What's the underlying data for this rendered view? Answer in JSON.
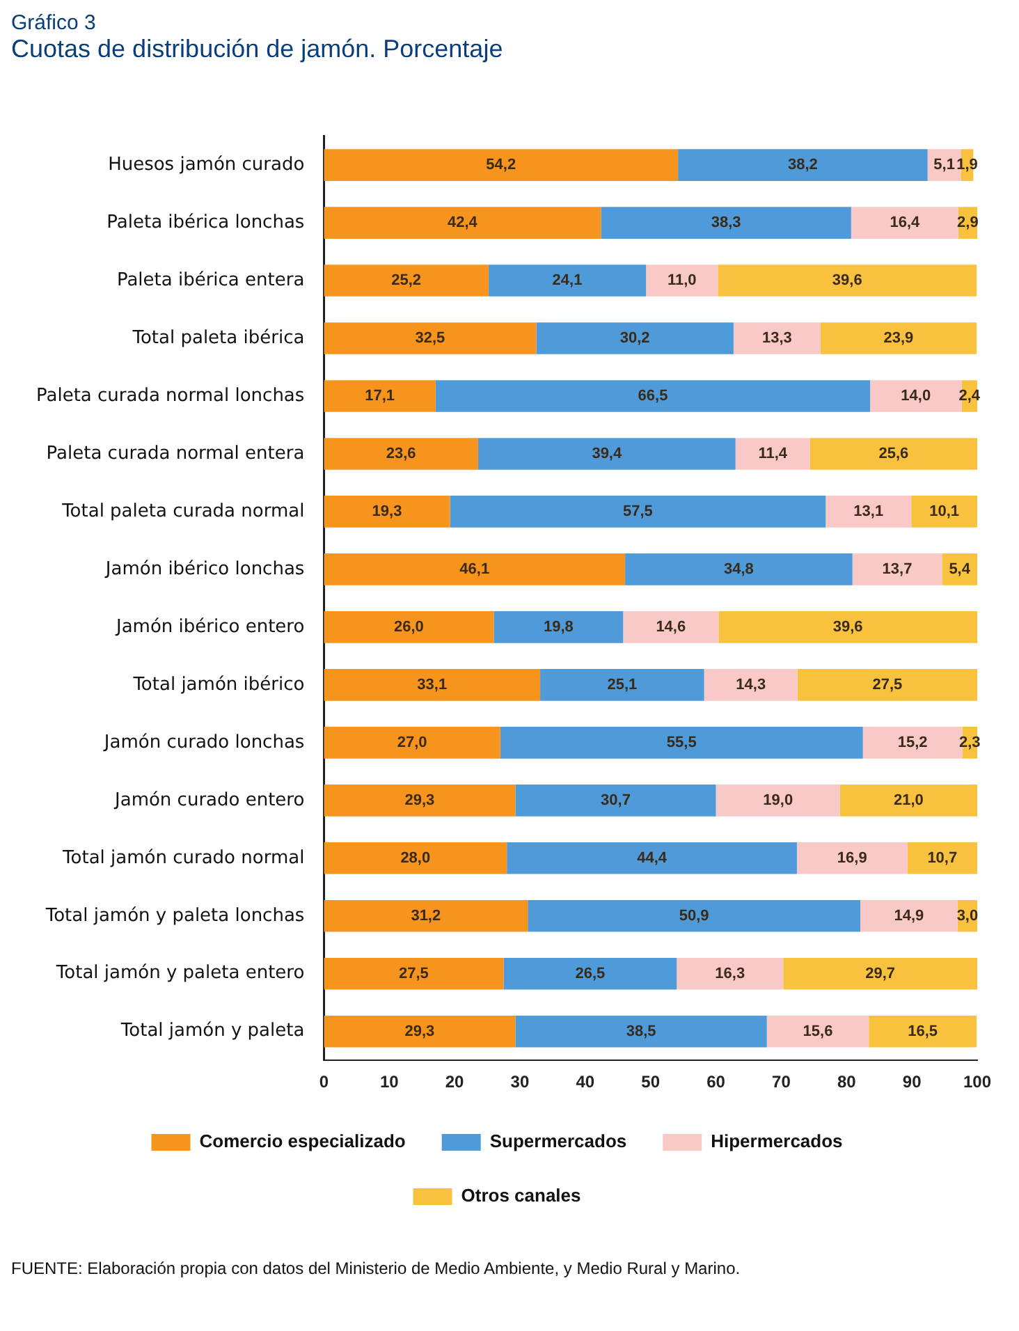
{
  "chart_data": {
    "type": "bar",
    "orientation": "horizontal",
    "stacked": true,
    "title": "Gráfico 3",
    "subtitle": "Cuotas de distribución de jamón. Porcentaje",
    "categories": [
      "Huesos jamón curado",
      "Paleta ibérica lonchas",
      "Paleta ibérica entera",
      "Total paleta ibérica",
      "Paleta curada normal lonchas",
      "Paleta curada normal entera",
      "Total paleta curada normal",
      "Jamón ibérico lonchas",
      "Jamón ibérico entero",
      "Total jamón ibérico",
      "Jamón curado lonchas",
      "Jamón curado entero",
      "Total jamón curado normal",
      "Total jamón y paleta lonchas",
      "Total jamón y paleta entero",
      "Total jamón y paleta"
    ],
    "series": [
      {
        "name": "Comercio especializado",
        "color": "#f7941d",
        "values": [
          54.2,
          42.4,
          25.2,
          32.5,
          17.1,
          23.6,
          19.3,
          46.1,
          26.0,
          33.1,
          27.0,
          29.3,
          28.0,
          31.2,
          27.5,
          29.3
        ],
        "value_labels": [
          "54,2",
          "42,4",
          "25,2",
          "32,5",
          "17,1",
          "23,6",
          "19,3",
          "46,1",
          "26,0",
          "33,1",
          "27,0",
          "29,3",
          "28,0",
          "31,2",
          "27,5",
          "29,3"
        ]
      },
      {
        "name": "Supermercados",
        "color": "#4f9bd9",
        "values": [
          38.2,
          38.3,
          24.1,
          30.2,
          66.5,
          39.4,
          57.5,
          34.8,
          19.8,
          25.1,
          55.5,
          30.7,
          44.4,
          50.9,
          26.5,
          38.5
        ],
        "value_labels": [
          "38,2",
          "38,3",
          "24,1",
          "30,2",
          "66,5",
          "39,4",
          "57,5",
          "34,8",
          "19,8",
          "25,1",
          "55,5",
          "30,7",
          "44,4",
          "50,9",
          "26,5",
          "38,5"
        ]
      },
      {
        "name": "Hipermercados",
        "color": "#f8c9c7",
        "values": [
          5.1,
          16.4,
          11.0,
          13.3,
          14.0,
          11.4,
          13.1,
          13.7,
          14.6,
          14.3,
          15.2,
          19.0,
          16.9,
          14.9,
          16.3,
          15.6
        ],
        "value_labels": [
          "5,1",
          "16,4",
          "11,0",
          "13,3",
          "14,0",
          "11,4",
          "13,1",
          "13,7",
          "14,6",
          "14,3",
          "15,2",
          "19,0",
          "16,9",
          "14,9",
          "16,3",
          "15,6"
        ]
      },
      {
        "name": "Otros canales",
        "color": "#f8c23e",
        "values": [
          1.9,
          2.9,
          39.6,
          23.9,
          2.4,
          25.6,
          10.1,
          5.4,
          39.6,
          27.5,
          2.3,
          21.0,
          10.7,
          3.0,
          29.7,
          16.5
        ],
        "value_labels": [
          "1,9",
          "2,9",
          "39,6",
          "23,9",
          "2,4",
          "25,6",
          "10,1",
          "5,4",
          "39,6",
          "27,5",
          "2,3",
          "21,0",
          "10,7",
          "3,0",
          "29,7",
          "16,5"
        ]
      }
    ],
    "xlim": [
      0,
      100
    ],
    "xticks": [
      0,
      10,
      20,
      30,
      40,
      50,
      60,
      70,
      80,
      90,
      100
    ],
    "grid": false,
    "legend": "bottom",
    "annotations": [
      "FUENTE: Elaboración propia con datos del Ministerio de Medio Ambiente, y Medio Rural y Marino."
    ]
  }
}
